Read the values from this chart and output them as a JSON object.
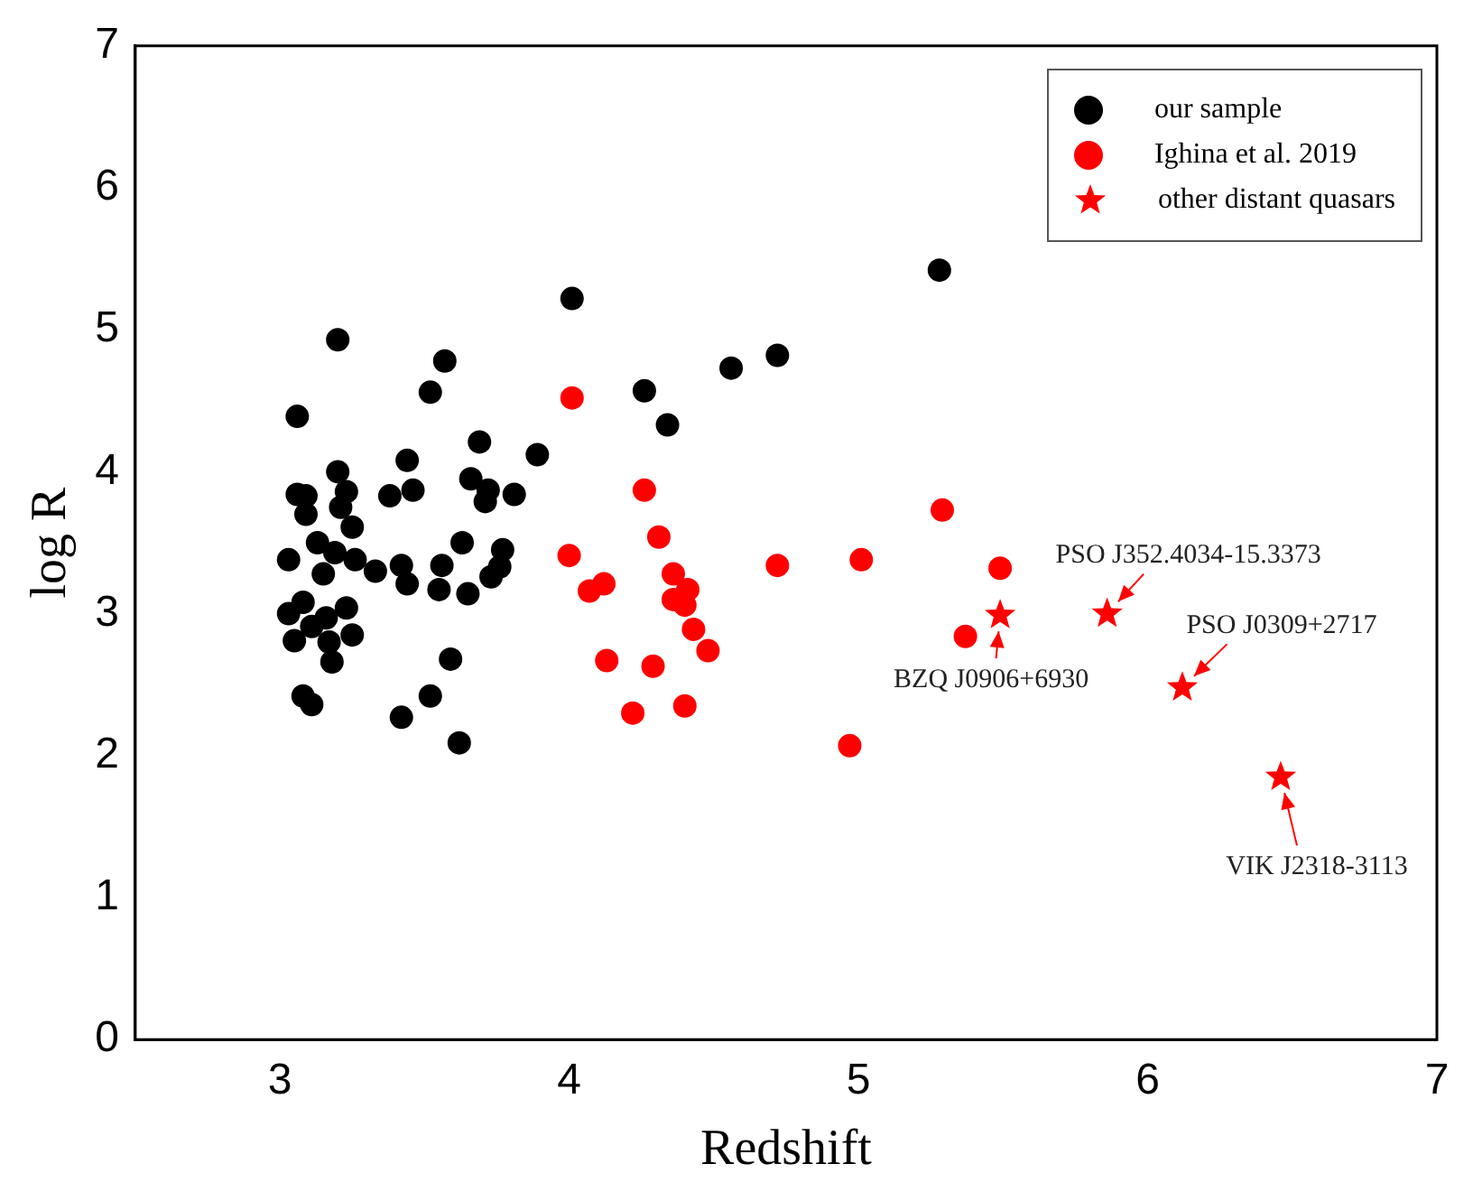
{
  "chart_data": {
    "type": "scatter",
    "xlabel": "Redshift",
    "ylabel": "log R",
    "xlim": [
      2.5,
      7
    ],
    "xticks": [
      3,
      4,
      5,
      6,
      7
    ],
    "ylim": [
      0,
      7
    ],
    "yticks": [
      0,
      1,
      2,
      3,
      4,
      5,
      6,
      7
    ],
    "grid": false,
    "legend": "top right",
    "series": [
      {
        "name": "our sample",
        "color": "#000000",
        "marker": "circle",
        "x": [
          3.06,
          3.2,
          3.57,
          3.52,
          4.01,
          5.28,
          4.56,
          4.72,
          4.26,
          4.34,
          3.89,
          3.44,
          3.69,
          3.66,
          3.72,
          3.71,
          3.81,
          3.46,
          3.38,
          3.2,
          3.06,
          3.09,
          3.23,
          3.21,
          3.09,
          3.25,
          3.19,
          3.13,
          3.26,
          3.33,
          3.03,
          3.15,
          3.42,
          3.44,
          3.56,
          3.63,
          3.77,
          3.76,
          3.73,
          3.55,
          3.65,
          3.03,
          3.08,
          3.16,
          3.23,
          3.11,
          3.05,
          3.17,
          3.25,
          3.18,
          3.59,
          3.08,
          3.11,
          3.52,
          3.42,
          3.62
        ],
        "values": [
          4.39,
          4.93,
          4.78,
          4.56,
          5.22,
          5.42,
          4.73,
          4.82,
          4.57,
          4.33,
          4.12,
          4.08,
          4.21,
          3.95,
          3.87,
          3.79,
          3.84,
          3.87,
          3.83,
          4.0,
          3.84,
          3.83,
          3.86,
          3.75,
          3.7,
          3.61,
          3.43,
          3.5,
          3.38,
          3.3,
          3.38,
          3.28,
          3.34,
          3.21,
          3.34,
          3.5,
          3.45,
          3.33,
          3.26,
          3.17,
          3.14,
          3.0,
          3.08,
          2.97,
          3.04,
          2.91,
          2.81,
          2.8,
          2.85,
          2.66,
          2.68,
          2.42,
          2.36,
          2.42,
          2.27,
          2.09
        ]
      },
      {
        "name": "Ighina et al. 2019",
        "color": "#ff0000",
        "marker": "circle",
        "x": [
          4.01,
          4.26,
          4.31,
          4.0,
          4.07,
          4.12,
          4.36,
          4.41,
          4.36,
          4.4,
          4.43,
          4.48,
          4.13,
          4.29,
          4.22,
          4.4,
          4.72,
          5.01,
          5.29,
          4.97,
          5.49,
          5.37
        ],
        "values": [
          4.52,
          3.87,
          3.54,
          3.41,
          3.16,
          3.21,
          3.28,
          3.17,
          3.1,
          3.06,
          2.89,
          2.74,
          2.67,
          2.63,
          2.3,
          2.35,
          3.34,
          3.38,
          3.73,
          2.07,
          3.32,
          2.84
        ]
      },
      {
        "name": "other distant quasars",
        "color": "#ff0000",
        "marker": "star",
        "x": [
          5.49,
          5.86,
          6.12,
          6.46
        ],
        "values": [
          2.99,
          3.0,
          2.48,
          1.85
        ]
      }
    ],
    "annotations": [
      {
        "text": "BZQ J0906+6930",
        "x": 5.49,
        "y": 2.99
      },
      {
        "text": "PSO J352.4034-15.3373",
        "x": 5.86,
        "y": 3.0
      },
      {
        "text": "PSO J0309+2717",
        "x": 6.12,
        "y": 2.48
      },
      {
        "text": "VIK J2318-3113",
        "x": 6.46,
        "y": 1.85
      }
    ]
  }
}
